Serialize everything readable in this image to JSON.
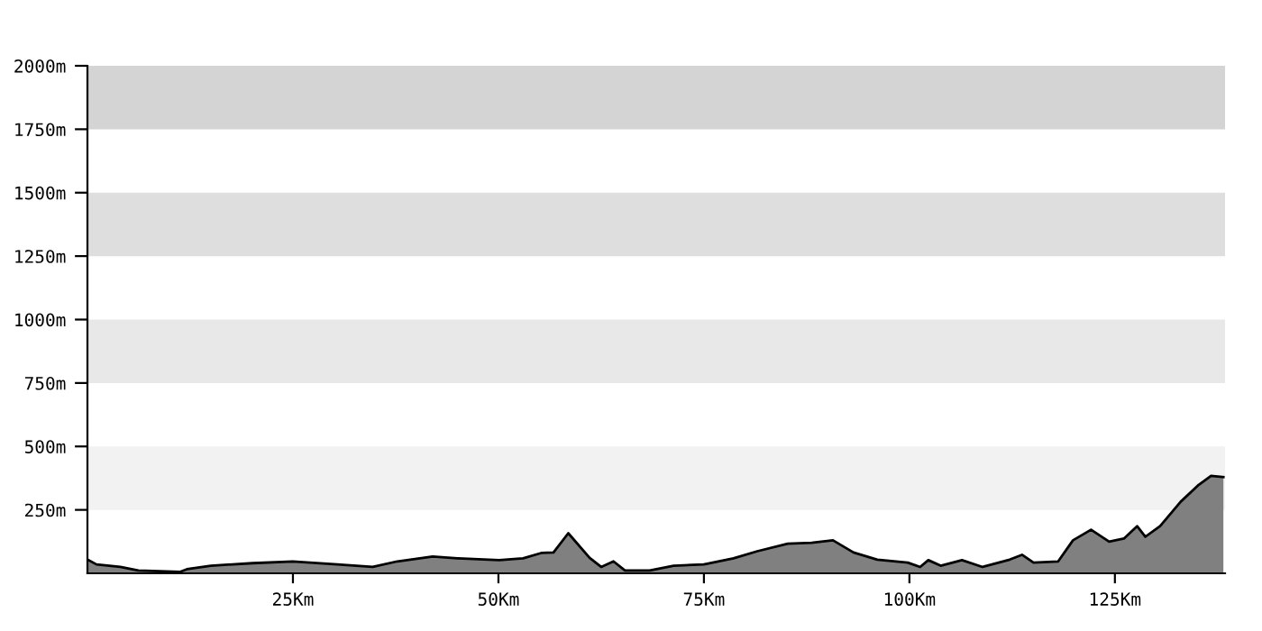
{
  "chart_data": {
    "type": "area",
    "color": "#808080",
    "x": [
      0,
      1.1,
      4.0,
      6.2,
      11.3,
      12.1,
      15.0,
      20.1,
      25,
      30.4,
      34.7,
      37.7,
      42.0,
      45.0,
      50.1,
      53.0,
      55.2,
      56.7,
      58.5,
      61.1,
      62.5,
      64.0,
      65.4,
      68.4,
      71.3,
      75,
      78.6,
      81.5,
      85.2,
      88.1,
      90.7,
      93.2,
      96.1,
      99.8,
      101.3,
      102.3,
      103.8,
      106.4,
      108.9,
      112.2,
      113.7,
      115.1,
      118.1,
      119.9,
      122.1,
      124.3,
      126.1,
      127.7,
      128.7,
      130.5,
      133.0,
      135.2,
      136.7,
      138.2
    ],
    "values": [
      54,
      35,
      25,
      11,
      6,
      16,
      30,
      40,
      47,
      35,
      25,
      47,
      66,
      59,
      52,
      59,
      80,
      82,
      158,
      61,
      25,
      47,
      11,
      11,
      30,
      35,
      59,
      87,
      117,
      120,
      130,
      82,
      54,
      42,
      25,
      52,
      30,
      52,
      25,
      54,
      73,
      42,
      47,
      130,
      172,
      125,
      137,
      186,
      144,
      186,
      282,
      349,
      384,
      379
    ],
    "xlim": [
      0,
      138.4
    ],
    "ylim": [
      0,
      2000
    ],
    "xticks": [
      {
        "value": 25,
        "label": "25Km"
      },
      {
        "value": 50,
        "label": "50Km"
      },
      {
        "value": 75,
        "label": "75Km"
      },
      {
        "value": 100,
        "label": "100Km"
      },
      {
        "value": 125,
        "label": "125Km"
      }
    ],
    "yticks": [
      {
        "value": 250,
        "label": "250m"
      },
      {
        "value": 500,
        "label": "500m"
      },
      {
        "value": 750,
        "label": "750m"
      },
      {
        "value": 1000,
        "label": "1000m"
      },
      {
        "value": 1250,
        "label": "1250m"
      },
      {
        "value": 1500,
        "label": "1500m"
      },
      {
        "value": 1750,
        "label": "1750m"
      },
      {
        "value": 2000,
        "label": "2000m"
      }
    ],
    "bands": [
      {
        "axis": "y",
        "from": 250,
        "to": 500,
        "color": "#f2f2f2"
      },
      {
        "axis": "y",
        "from": 750,
        "to": 1000,
        "color": "#e8e8e8"
      },
      {
        "axis": "y",
        "from": 1250,
        "to": 1500,
        "color": "#dedede"
      },
      {
        "axis": "y",
        "from": 1750,
        "to": 2000,
        "color": "#d4d4d4"
      }
    ],
    "grid": false
  }
}
